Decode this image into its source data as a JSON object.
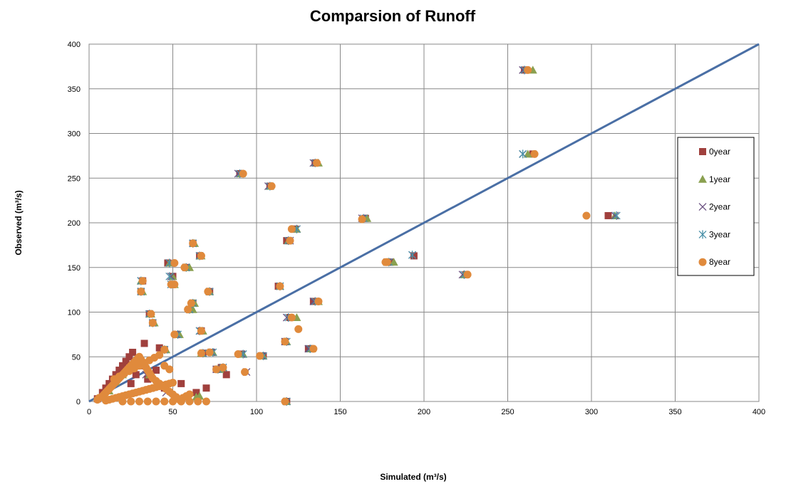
{
  "chart_data": {
    "type": "scatter",
    "title": "Comparsion of Runoff",
    "xlabel": "Simulated  (m³/s)",
    "ylabel": "Observed  (m³/s)",
    "xlim": [
      0,
      400
    ],
    "ylim": [
      0,
      400
    ],
    "xticks": [
      0,
      50,
      100,
      150,
      200,
      250,
      300,
      350,
      400
    ],
    "yticks": [
      0,
      50,
      100,
      150,
      200,
      250,
      300,
      350,
      400
    ],
    "grid": true,
    "legend_position": "right",
    "reference_line": {
      "x": [
        0,
        400
      ],
      "y": [
        0,
        400
      ],
      "color": "#4a6fa5"
    },
    "series": [
      {
        "name": "0year",
        "marker": "square",
        "color": "#a0403d",
        "x": [
          260,
          265,
          135,
          108,
          90,
          118,
          165,
          194,
          134,
          120,
          117,
          113,
          62,
          66,
          58,
          50,
          50,
          36,
          38,
          32,
          31,
          62,
          52,
          72,
          67,
          60,
          68,
          45,
          47,
          310,
          225,
          180,
          123,
          131,
          118,
          91,
          79,
          73,
          76,
          104,
          5,
          8,
          10,
          12,
          14,
          16,
          18,
          20,
          22,
          25,
          28,
          30,
          35,
          40,
          45,
          55,
          64,
          82,
          70,
          24,
          26,
          33,
          42
        ],
        "y": [
          371,
          277,
          267,
          241,
          255,
          180,
          205,
          163,
          112,
          94,
          67,
          129,
          177,
          163,
          150,
          131,
          140,
          98,
          88,
          135,
          123,
          110,
          75,
          123,
          79,
          103,
          54,
          58,
          155,
          208,
          142,
          156,
          193,
          59,
          0,
          53,
          38,
          55,
          36,
          51,
          3,
          10,
          15,
          20,
          25,
          30,
          35,
          40,
          45,
          20,
          30,
          40,
          25,
          35,
          15,
          20,
          10,
          30,
          15,
          50,
          55,
          65,
          60
        ]
      },
      {
        "name": "1year",
        "marker": "triangle",
        "color": "#8aa050",
        "x": [
          265,
          262,
          137,
          108,
          91,
          119,
          166,
          182,
          137,
          124,
          118,
          114,
          63,
          67,
          60,
          51,
          50,
          37,
          39,
          31,
          32,
          63,
          54,
          72,
          68,
          62,
          67,
          46,
          48,
          314,
          224,
          178,
          124,
          133,
          118,
          92,
          80,
          74,
          78,
          104,
          7,
          12,
          16,
          20,
          26,
          32,
          36,
          42,
          64,
          66
        ],
        "y": [
          371,
          277,
          267,
          241,
          255,
          180,
          205,
          156,
          112,
          94,
          67,
          129,
          177,
          163,
          150,
          131,
          140,
          98,
          88,
          135,
          123,
          110,
          75,
          123,
          79,
          103,
          54,
          58,
          155,
          208,
          142,
          156,
          193,
          59,
          0,
          53,
          38,
          55,
          36,
          51,
          5,
          12,
          22,
          30,
          38,
          44,
          30,
          20,
          5,
          6
        ]
      },
      {
        "name": "2year",
        "marker": "x",
        "color": "#6a5080",
        "x": [
          259,
          259,
          134,
          107,
          89,
          120,
          163,
          193,
          134,
          118,
          117,
          114,
          62,
          66,
          58,
          49,
          49,
          36,
          38,
          31,
          31,
          62,
          52,
          72,
          66,
          60,
          68,
          45,
          48,
          314,
          223,
          178,
          124,
          131,
          118,
          91,
          80,
          73,
          76,
          103,
          94,
          30,
          34,
          40,
          46
        ],
        "y": [
          371,
          277,
          267,
          241,
          255,
          180,
          205,
          164,
          112,
          94,
          67,
          129,
          177,
          163,
          150,
          131,
          140,
          98,
          88,
          135,
          123,
          110,
          75,
          123,
          79,
          103,
          54,
          58,
          155,
          208,
          142,
          156,
          193,
          59,
          0,
          53,
          38,
          55,
          36,
          51,
          33,
          45,
          30,
          20,
          10
        ]
      },
      {
        "name": "3year",
        "marker": "asterisk",
        "color": "#4a90a8",
        "x": [
          260,
          259,
          135,
          108,
          90,
          119,
          164,
          193,
          135,
          119,
          118,
          114,
          62,
          66,
          58,
          49,
          48,
          36,
          38,
          31,
          31,
          62,
          53,
          72,
          66,
          60,
          68,
          45,
          48,
          315,
          224,
          179,
          124,
          132,
          118,
          92,
          80,
          74,
          77,
          104
        ],
        "y": [
          371,
          277,
          267,
          241,
          255,
          180,
          205,
          164,
          112,
          94,
          67,
          129,
          177,
          163,
          150,
          131,
          140,
          98,
          88,
          135,
          123,
          110,
          75,
          123,
          79,
          103,
          54,
          58,
          155,
          208,
          142,
          156,
          193,
          59,
          0,
          53,
          38,
          55,
          36,
          51
        ]
      },
      {
        "name": "8year",
        "marker": "circle",
        "color": "#e08a3c",
        "x": [
          262,
          266,
          136,
          109,
          92,
          120,
          163,
          178,
          137,
          121,
          117,
          114,
          62,
          67,
          57,
          51,
          51,
          37,
          38,
          32,
          31,
          61,
          51,
          71,
          67,
          59,
          67,
          45,
          49,
          297,
          226,
          177,
          121,
          134,
          117,
          89,
          80,
          72,
          76,
          102,
          93,
          125,
          5,
          6,
          8,
          9,
          10,
          11,
          12,
          13,
          14,
          15,
          16,
          17,
          18,
          19,
          20,
          21,
          22,
          23,
          24,
          25,
          26,
          27,
          28,
          29,
          30,
          31,
          32,
          33,
          34,
          35,
          36,
          37,
          38,
          40,
          42,
          44,
          46,
          48,
          50,
          52,
          54,
          56,
          58,
          60,
          10,
          12,
          14,
          16,
          18,
          20,
          22,
          24,
          26,
          28,
          30,
          32,
          34,
          36,
          38,
          40,
          42,
          44,
          46,
          48,
          50,
          15,
          18,
          21,
          24,
          27,
          30,
          33,
          36,
          39,
          42,
          45,
          48,
          20,
          25,
          30,
          35,
          40,
          45,
          50,
          55,
          60,
          65,
          70
        ],
        "y": [
          371,
          277,
          267,
          241,
          255,
          180,
          204,
          156,
          112,
          94,
          67,
          129,
          177,
          163,
          150,
          131,
          155,
          98,
          88,
          135,
          123,
          110,
          75,
          123,
          79,
          103,
          54,
          58,
          131,
          208,
          142,
          156,
          193,
          59,
          0,
          53,
          38,
          55,
          36,
          51,
          33,
          81,
          2,
          4,
          6,
          8,
          10,
          12,
          14,
          16,
          18,
          20,
          22,
          24,
          26,
          28,
          30,
          32,
          34,
          36,
          38,
          40,
          42,
          44,
          46,
          48,
          50,
          47,
          44,
          41,
          38,
          35,
          32,
          29,
          26,
          23,
          20,
          17,
          14,
          11,
          8,
          5,
          2,
          4,
          6,
          8,
          1,
          2,
          3,
          4,
          5,
          6,
          7,
          8,
          9,
          10,
          11,
          12,
          13,
          14,
          15,
          16,
          17,
          18,
          19,
          20,
          21,
          25,
          28,
          31,
          34,
          37,
          40,
          43,
          46,
          49,
          52,
          40,
          36,
          0,
          0,
          0,
          0,
          0,
          0,
          0,
          0,
          0,
          0,
          0
        ]
      }
    ]
  }
}
